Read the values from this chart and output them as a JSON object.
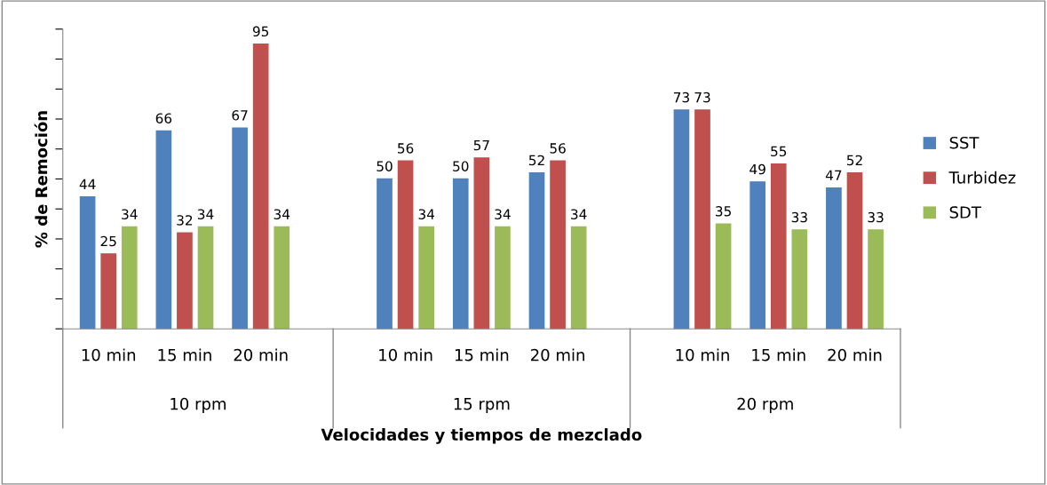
{
  "chart_data": {
    "type": "bar",
    "xlabel": "Velocidades y tiempos de mezclado",
    "ylabel": "% de Remoción",
    "categories": [
      "10 min",
      "15 min",
      "20 min",
      "10 min",
      "15 min",
      "20 min",
      "10 min",
      "15 min",
      "20 min"
    ],
    "annotations": [
      "10 rpm",
      "15 rpm",
      "20 rpm"
    ],
    "series": [
      {
        "name": "SST",
        "color": "#4f81bd",
        "values": [
          44,
          66,
          67,
          50,
          50,
          52,
          73,
          49,
          47
        ]
      },
      {
        "name": "Turbidez",
        "color": "#c0504d",
        "values": [
          25,
          32,
          95,
          56,
          57,
          56,
          73,
          55,
          52
        ]
      },
      {
        "name": "SDT",
        "color": "#9bbb59",
        "values": [
          34,
          34,
          34,
          34,
          34,
          34,
          35,
          33,
          33
        ]
      }
    ],
    "ylim": [
      0,
      100
    ],
    "yticks": [
      {
        "value": 0,
        "label": null
      },
      {
        "value": 10,
        "label": null
      },
      {
        "value": 20,
        "label": null
      },
      {
        "value": 30,
        "label": null
      },
      {
        "value": 40,
        "label": null
      },
      {
        "value": 50,
        "label": null
      },
      {
        "value": 60,
        "label": null
      },
      {
        "value": 70,
        "label": null
      },
      {
        "value": 80,
        "label": null
      },
      {
        "value": 90,
        "label": null
      },
      {
        "value": 100,
        "label": null
      }
    ],
    "tick_labels": "x",
    "data_labels": true,
    "legend": "right",
    "grid": false
  }
}
